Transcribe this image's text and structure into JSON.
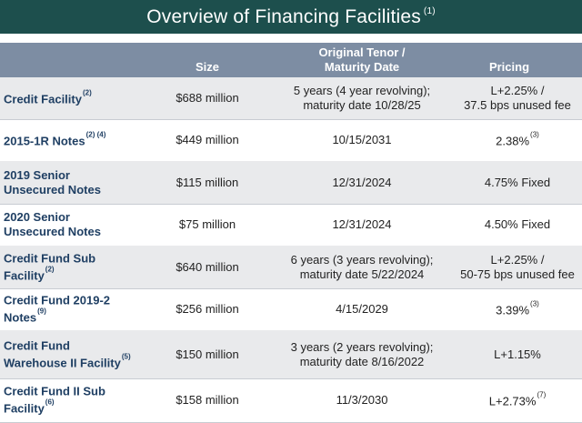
{
  "title": {
    "text": "Overview of Financing Facilities",
    "note": "(1)"
  },
  "headers": {
    "size": "Size",
    "tenor_line1": "Original Tenor /",
    "tenor_line2": "Maturity Date",
    "pricing": "Pricing"
  },
  "rows": [
    {
      "name1": "Credit Facility",
      "name2": "",
      "name_note": "(2)",
      "size": "$688 million",
      "tenor1": "5 years (4 year revolving);",
      "tenor2": "maturity date 10/28/25",
      "pricing1": "L+2.25% /",
      "pricing2": "37.5 bps unused fee",
      "pricing_note": ""
    },
    {
      "name1": "2015-1R Notes",
      "name2": "",
      "name_note": "(2) (4)",
      "size": "$449 million",
      "tenor1": "10/15/2031",
      "tenor2": "",
      "pricing1": "2.38%",
      "pricing2": "",
      "pricing_note": "(3)"
    },
    {
      "name1": "2019 Senior",
      "name2": "Unsecured Notes",
      "name_note": "",
      "size": "$115 million",
      "tenor1": "12/31/2024",
      "tenor2": "",
      "pricing1": "4.75% Fixed",
      "pricing2": "",
      "pricing_note": ""
    },
    {
      "name1": "2020 Senior",
      "name2": "Unsecured Notes",
      "name_note": "",
      "size": "$75 million",
      "tenor1": "12/31/2024",
      "tenor2": "",
      "pricing1": "4.50% Fixed",
      "pricing2": "",
      "pricing_note": ""
    },
    {
      "name1": "Credit Fund Sub",
      "name2": "Facility",
      "name_note": "(2)",
      "size": "$640 million",
      "tenor1": "6 years (3 years revolving);",
      "tenor2": "maturity date 5/22/2024",
      "pricing1": "L+2.25% /",
      "pricing2": "50-75 bps unused fee",
      "pricing_note": ""
    },
    {
      "name1": "Credit Fund 2019-2",
      "name2": "Notes",
      "name_note": "(9)",
      "size": "$256 million",
      "tenor1": "4/15/2029",
      "tenor2": "",
      "pricing1": "3.39%",
      "pricing2": "",
      "pricing_note": "(3)"
    },
    {
      "name1": "Credit Fund",
      "name2": "Warehouse II Facility",
      "name_note": "(5)",
      "size": "$150 million",
      "tenor1": "3 years (2 years revolving);",
      "tenor2": "maturity date 8/16/2022",
      "pricing1": "L+1.15%",
      "pricing2": "",
      "pricing_note": ""
    },
    {
      "name1": "Credit Fund II Sub",
      "name2": "Facility",
      "name_note": "(6)",
      "size": "$158 million",
      "tenor1": "11/3/2030",
      "tenor2": "",
      "pricing1": "L+2.73%",
      "pricing2": "",
      "pricing_note": "(7)"
    }
  ]
}
